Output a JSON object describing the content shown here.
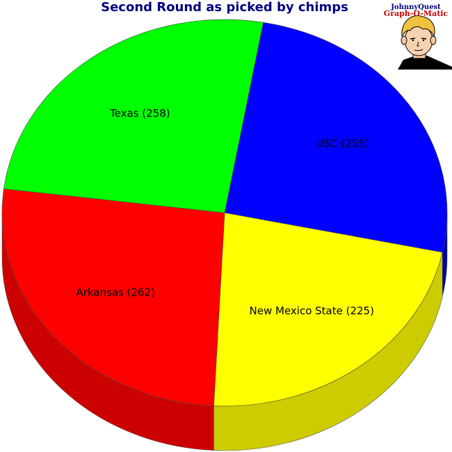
{
  "chart_data": {
    "type": "pie",
    "title": "Second Round as picked by chimps",
    "style": "3d",
    "legend": "none",
    "slices": [
      {
        "name": "USC",
        "value": 255,
        "label": "USC (255)",
        "color": "#0000ff",
        "shade": "#0000aa"
      },
      {
        "name": "New Mexico State",
        "value": 225,
        "label": "New Mexico State (225)",
        "color": "#ffff00",
        "shade": "#cccc00"
      },
      {
        "name": "Arkansas",
        "value": 262,
        "label": "Arkansas (262)",
        "color": "#ff0000",
        "shade": "#cc0000"
      },
      {
        "name": "Texas",
        "value": 258,
        "label": "Texas (258)",
        "color": "#00ff00",
        "shade": "#00cc00"
      }
    ]
  },
  "logo": {
    "line1": "JohnnyQuest",
    "line2": "Graph-O-Matic",
    "line1_color": "#000080",
    "line2_color": "#cc0000"
  },
  "colors": {
    "title": "#000080",
    "outline": "#000000",
    "background": "#ffffff"
  }
}
